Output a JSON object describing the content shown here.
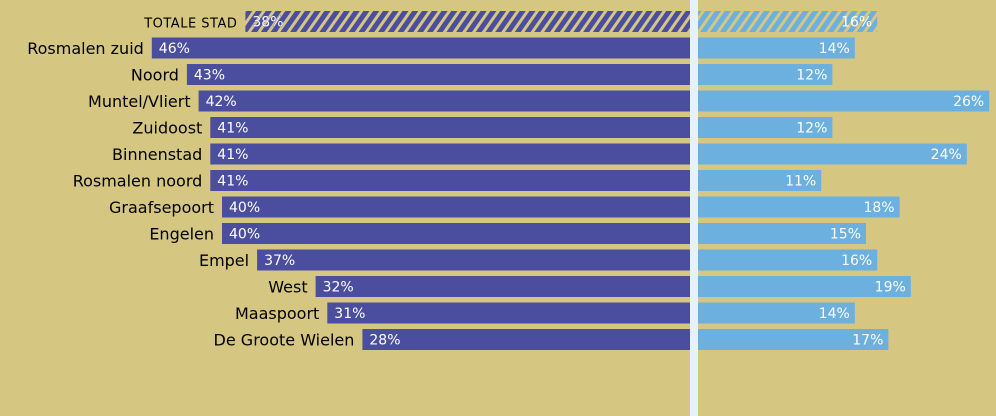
{
  "chart_data": {
    "type": "bar",
    "orientation": "horizontal-diverging",
    "title": "",
    "categories": [
      "Totale stad",
      "Rosmalen zuid",
      "Noord",
      "Muntel/Vliert",
      "Zuidoost",
      "Binnenstad",
      "Rosmalen noord",
      "Graafsepoort",
      "Engelen",
      "Empel",
      "West",
      "Maaspoort",
      "De Groote Wielen"
    ],
    "series": [
      {
        "color": "#4b4e9e",
        "values": [
          38,
          46,
          43,
          42,
          41,
          41,
          41,
          40,
          40,
          37,
          32,
          31,
          28
        ],
        "labels": [
          "38%",
          "46%",
          "43%",
          "42%",
          "41%",
          "41%",
          "41%",
          "40%",
          "40%",
          "37%",
          "32%",
          "31%",
          "28%"
        ]
      },
      {
        "color": "#6bb0de",
        "values": [
          16,
          14,
          12,
          26,
          12,
          24,
          11,
          18,
          15,
          16,
          19,
          14,
          17
        ],
        "labels": [
          "16%",
          "14%",
          "12%",
          "26%",
          "12%",
          "24%",
          "11%",
          "18%",
          "15%",
          "16%",
          "19%",
          "14%",
          "17%"
        ]
      }
    ],
    "highlight_category": "Totale stad",
    "highlight_style": "hatched",
    "divider_color": "#e6f2fa"
  }
}
